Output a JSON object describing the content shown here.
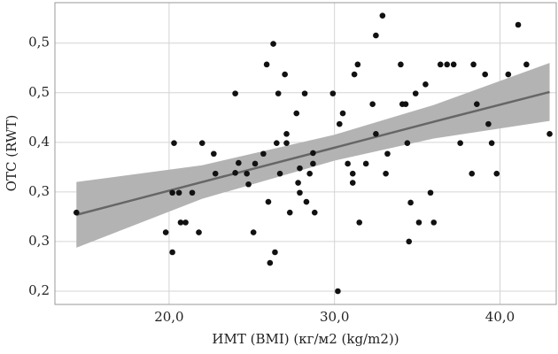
{
  "chart_data": {
    "type": "scatter",
    "xlabel": "ИМТ (BMI) (кг/м2 (kg/m2))",
    "ylabel": "ОТС (RWT)",
    "x": [
      14.4,
      19.8,
      20.2,
      20.3,
      20.2,
      20.6,
      20.7,
      21.0,
      21.4,
      21.8,
      22.0,
      22.7,
      22.8,
      24.0,
      24.0,
      24.2,
      24.7,
      24.8,
      25.1,
      25.2,
      25.7,
      25.9,
      26.0,
      26.3,
      26.4,
      26.1,
      26.5,
      26.6,
      26.7,
      27.0,
      27.1,
      27.1,
      27.3,
      27.7,
      27.8,
      27.9,
      27.9,
      28.2,
      28.3,
      28.5,
      28.7,
      28.7,
      28.8,
      29.9,
      30.2,
      30.3,
      30.5,
      30.8,
      31.1,
      31.1,
      31.2,
      31.4,
      31.5,
      31.9,
      32.3,
      32.5,
      32.5,
      32.9,
      33.1,
      33.2,
      34.0,
      34.1,
      34.3,
      34.4,
      34.5,
      34.6,
      34.9,
      35.1,
      35.5,
      35.8,
      36.0,
      36.4,
      36.8,
      37.2,
      37.6,
      38.3,
      38.4,
      38.6,
      39.1,
      39.3,
      39.5,
      39.8,
      40.5,
      41.1,
      41.6,
      43.0
    ],
    "values": [
      0.303,
      0.277,
      0.251,
      0.394,
      0.329,
      0.329,
      0.29,
      0.29,
      0.329,
      0.277,
      0.394,
      0.38,
      0.354,
      0.459,
      0.355,
      0.368,
      0.354,
      0.34,
      0.277,
      0.367,
      0.38,
      0.497,
      0.317,
      0.524,
      0.251,
      0.237,
      0.394,
      0.459,
      0.354,
      0.484,
      0.406,
      0.394,
      0.303,
      0.433,
      0.342,
      0.329,
      0.361,
      0.459,
      0.317,
      0.354,
      0.367,
      0.381,
      0.303,
      0.459,
      0.2,
      0.419,
      0.433,
      0.367,
      0.354,
      0.342,
      0.484,
      0.497,
      0.29,
      0.367,
      0.445,
      0.535,
      0.406,
      0.561,
      0.354,
      0.38,
      0.497,
      0.445,
      0.445,
      0.394,
      0.265,
      0.316,
      0.459,
      0.29,
      0.471,
      0.329,
      0.29,
      0.497,
      0.497,
      0.497,
      0.394,
      0.354,
      0.497,
      0.445,
      0.484,
      0.419,
      0.394,
      0.354,
      0.484,
      0.549,
      0.497,
      0.406
    ],
    "color": "#111111",
    "fit": {
      "x": [
        14.4,
        22,
        30,
        36,
        43
      ],
      "values": [
        0.3,
        0.343,
        0.388,
        0.422,
        0.461
      ],
      "upper": [
        0.343,
        0.365,
        0.405,
        0.444,
        0.499
      ],
      "lower": [
        0.257,
        0.321,
        0.371,
        0.4,
        0.423
      ],
      "color": "#666666",
      "band_color": "#b3b3b3"
    },
    "xlim": [
      13.1,
      43.4
    ],
    "ylim": [
      0.1826,
      0.578
    ],
    "xticks": [
      {
        "value": 20,
        "label": "20,0"
      },
      {
        "value": 30,
        "label": "30,0"
      },
      {
        "value": 40,
        "label": "40,0"
      }
    ],
    "yticks": [
      {
        "value": 0.2,
        "label": "0,2"
      },
      {
        "value": 0.265,
        "label": "0,3"
      },
      {
        "value": 0.33,
        "label": "0,3"
      },
      {
        "value": 0.395,
        "label": "0,4"
      },
      {
        "value": 0.46,
        "label": "0,5"
      },
      {
        "value": 0.525,
        "label": "0,5"
      }
    ],
    "grid": true
  }
}
